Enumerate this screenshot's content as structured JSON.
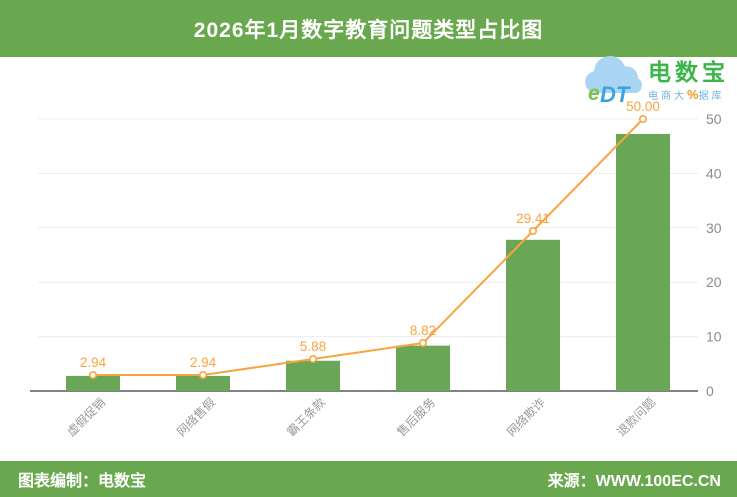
{
  "header": {
    "title": "2026年1月数字教育问题类型占比图",
    "bg_color": "#6aa84f",
    "text_color": "#ffffff"
  },
  "logo": {
    "cloud_text_e": "e",
    "cloud_text_dt": "DT",
    "name": "电数宝",
    "tagline_prefix": "电商大",
    "tagline_percent": "%",
    "tagline_suffix": "据库"
  },
  "footer": {
    "left": "图表编制：电数宝",
    "right": "来源：WWW.100EC.CN"
  },
  "chart_data": {
    "type": "bar",
    "title": "2026年1月数字教育问题类型占比图",
    "categories": [
      "虚假促销",
      "网络售假",
      "霸王条款",
      "售后服务",
      "网络欺诈",
      "退款问题"
    ],
    "series": [
      {
        "name": "占比",
        "type": "bar",
        "values": [
          2.94,
          2.94,
          5.88,
          8.82,
          29.41,
          50.0
        ],
        "color": "#69a655"
      },
      {
        "name": "占比",
        "type": "line",
        "values": [
          2.94,
          2.94,
          5.88,
          8.82,
          29.41,
          50.0
        ],
        "color": "#f9a43f"
      }
    ],
    "data_labels": [
      "2.94",
      "2.94",
      "5.88",
      "8.82",
      "29.41",
      "50.00"
    ],
    "xlabel": "",
    "ylabel": "",
    "y_axis": {
      "side": "right",
      "min": 0,
      "max": 50,
      "ticks": [
        0,
        10,
        20,
        30,
        40,
        50
      ]
    },
    "x_label_rotation_deg": 45,
    "grid": true,
    "legend": false,
    "colors": {
      "bar": "#69a655",
      "line": "#f9a43f",
      "label": "#f9a43f",
      "gridline": "#ececec",
      "axis_line": "#54585f",
      "x_tick_label": "#999999",
      "y_tick_label": "#8c8c8c"
    }
  }
}
